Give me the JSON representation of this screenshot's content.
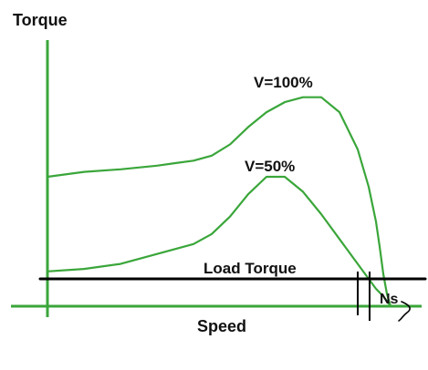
{
  "chart_data": {
    "type": "line",
    "ylabel": "Torque",
    "xlabel": "Speed",
    "xlim": [
      0,
      100
    ],
    "ylim": [
      0,
      100
    ],
    "grid": false,
    "legend": "none",
    "series": [
      {
        "name": "V=100%",
        "color": "#3aa63a",
        "x": [
          0,
          10,
          20,
          30,
          35,
          40,
          45,
          50,
          55,
          60,
          65,
          70,
          75,
          80,
          85,
          88,
          90,
          91,
          92,
          93,
          94
        ],
        "y": [
          52,
          54,
          55,
          56.5,
          57.5,
          58.5,
          60.5,
          65,
          72,
          78,
          82,
          84,
          84,
          78,
          63,
          48,
          34,
          24,
          13,
          5,
          0
        ]
      },
      {
        "name": "V=50%",
        "color": "#3aa63a",
        "x": [
          0,
          10,
          20,
          30,
          40,
          45,
          50,
          55,
          60,
          65,
          70,
          75,
          80,
          85,
          88,
          90,
          92,
          93,
          94
        ],
        "y": [
          14,
          15,
          17,
          21,
          25,
          29,
          36,
          45,
          52,
          52,
          46,
          37,
          27,
          17,
          11,
          7,
          4,
          2,
          0
        ]
      },
      {
        "name": "Load Torque",
        "color": "#000000",
        "x": [
          -10,
          110
        ],
        "y": [
          11,
          11
        ]
      }
    ],
    "annotations": [
      {
        "text": "Ns",
        "x": 97,
        "y": 2
      }
    ],
    "axis_color": "#3aa63a"
  }
}
